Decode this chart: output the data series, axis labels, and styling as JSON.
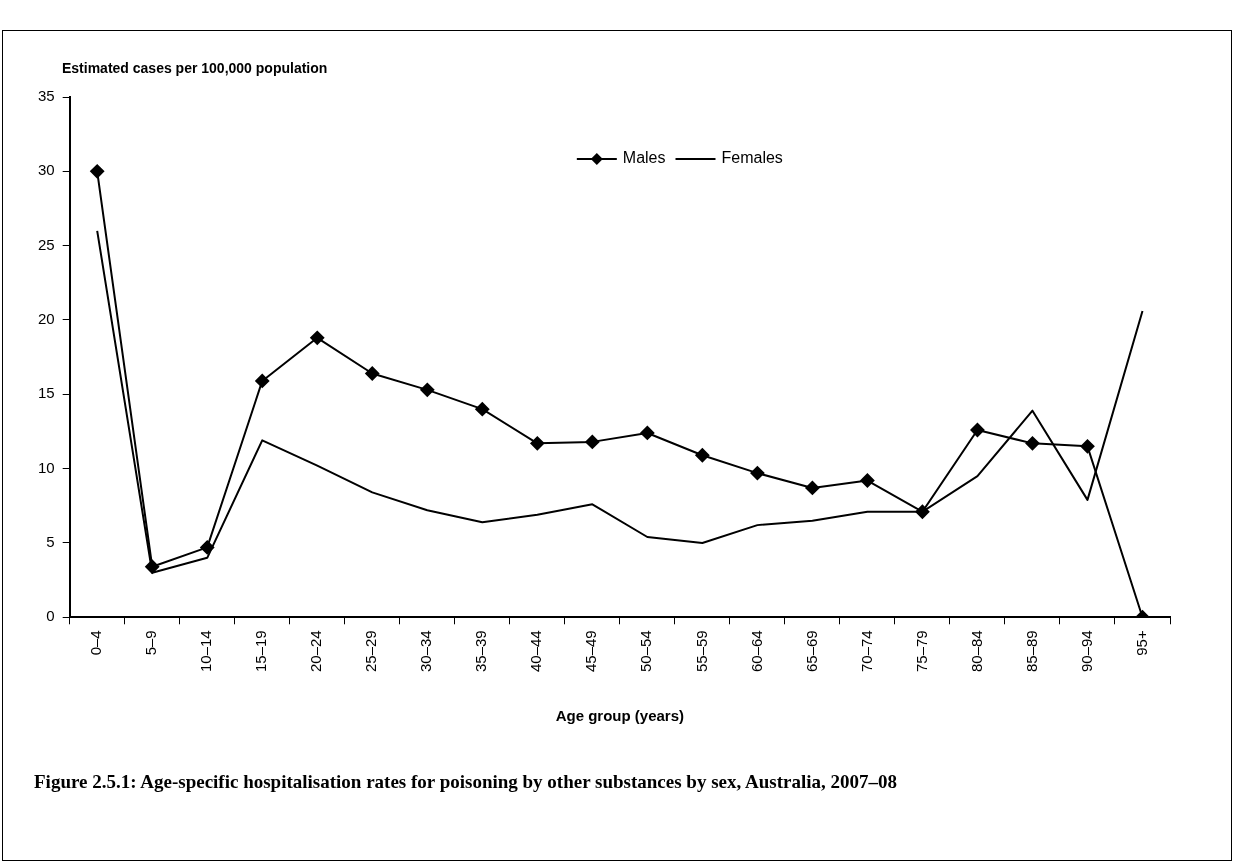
{
  "chart_data": {
    "type": "line",
    "title": "Figure 2.5.1: Age-specific hospitalisation rates for poisoning by other substances by sex, Australia, 2007–08",
    "ylabel": "Estimated cases per 100,000 population",
    "xlabel": "Age group (years)",
    "categories": [
      "0–4",
      "5–9",
      "10–14",
      "15–19",
      "20–24",
      "25–29",
      "30–34",
      "35–39",
      "40–44",
      "45–49",
      "50–54",
      "55–59",
      "60–64",
      "65–69",
      "70–74",
      "75–79",
      "80–84",
      "85–89",
      "90–94",
      "95+"
    ],
    "series": [
      {
        "name": "Males",
        "color": "#000000",
        "marker": "diamond",
        "values": [
          30,
          3.4,
          4.7,
          15.9,
          18.8,
          16.4,
          15.3,
          14.0,
          11.7,
          11.8,
          12.4,
          10.9,
          9.7,
          8.7,
          9.2,
          7.1,
          12.6,
          11.7,
          11.5,
          0
        ]
      },
      {
        "name": "Females",
        "color": "#000000",
        "marker": "none",
        "values": [
          26.0,
          3.0,
          4.0,
          11.9,
          10.2,
          8.4,
          7.2,
          6.4,
          6.9,
          7.6,
          5.4,
          5.0,
          6.2,
          6.5,
          7.1,
          7.1,
          9.5,
          13.9,
          7.9,
          20.6
        ]
      }
    ],
    "ylim": [
      0,
      35
    ],
    "yticks": [
      0,
      5,
      10,
      15,
      20,
      25,
      30,
      35
    ],
    "grid": false,
    "legend": "top",
    "line_style": "solid"
  }
}
